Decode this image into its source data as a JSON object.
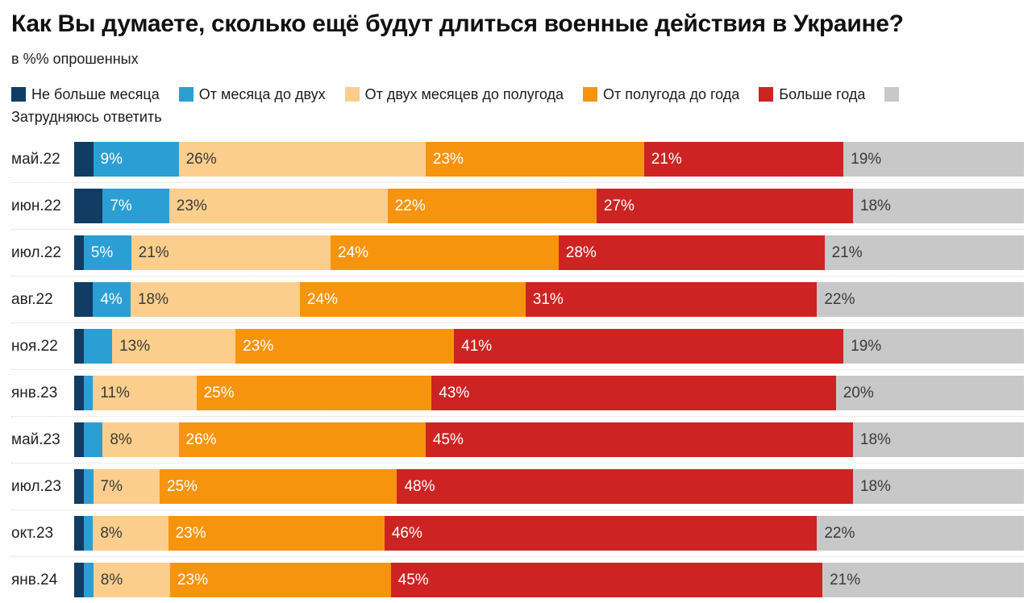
{
  "title": "Как Вы думаете, сколько ещё будут длиться военные действия в Украине?",
  "subtitle": "в %% опрошенных",
  "colors": {
    "navy": "#113C63",
    "cyan": "#2B9FD3",
    "peach": "#FBCE8D",
    "orange": "#F7940D",
    "red": "#CD2423",
    "gray": "#C8C8C8",
    "dark_label": "#3A3A3A",
    "white_label": "#FFFFFF",
    "separator": "#D9D9D9"
  },
  "chart_data": {
    "type": "bar",
    "stacked": true,
    "orientation": "horizontal",
    "unit": "%",
    "label_threshold": 4,
    "legend_position": "top",
    "categories": [
      "май.22",
      "июн.22",
      "июл.22",
      "авг.22",
      "ноя.22",
      "янв.23",
      "май.23",
      "июл.23",
      "окт.23",
      "янв.24"
    ],
    "series": [
      {
        "name": "Не больше месяца",
        "color": "#113C63",
        "label_color": "#FFFFFF",
        "values": [
          2,
          3,
          1,
          2,
          1,
          1,
          1,
          1,
          1,
          1
        ]
      },
      {
        "name": "От месяца до двух",
        "color": "#2B9FD3",
        "label_color": "#FFFFFF",
        "values": [
          9,
          7,
          5,
          4,
          3,
          1,
          2,
          1,
          1,
          1
        ]
      },
      {
        "name": "От двух месяцев до полугода",
        "color": "#FBCE8D",
        "label_color": "#3A3A3A",
        "values": [
          26,
          23,
          21,
          18,
          13,
          11,
          8,
          7,
          8,
          8
        ]
      },
      {
        "name": "От полугода до года",
        "color": "#F7940D",
        "label_color": "#FFFFFF",
        "values": [
          23,
          22,
          24,
          24,
          23,
          25,
          26,
          25,
          23,
          23
        ]
      },
      {
        "name": "Больше года",
        "color": "#CD2423",
        "label_color": "#FFFFFF",
        "values": [
          21,
          27,
          28,
          31,
          41,
          43,
          45,
          48,
          46,
          45
        ]
      },
      {
        "name": "Затрудняюсь ответить",
        "color": "#C8C8C8",
        "label_color": "#3A3A3A",
        "values": [
          19,
          18,
          21,
          22,
          19,
          20,
          18,
          18,
          22,
          21
        ]
      }
    ]
  }
}
